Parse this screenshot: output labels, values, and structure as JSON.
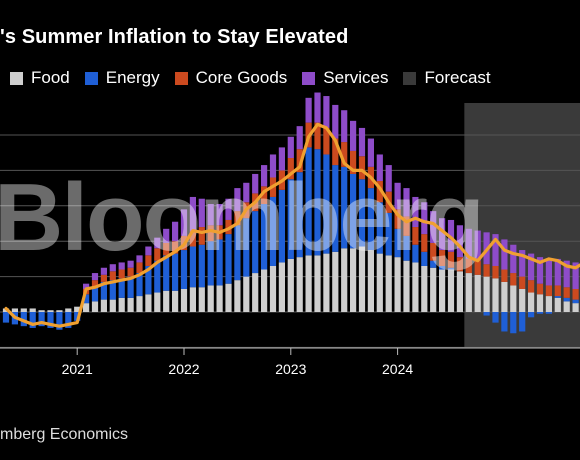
{
  "header": {
    "title": "'s Summer Inflation to Stay Elevated"
  },
  "legend": [
    {
      "label": "Food",
      "color": "#cfcfcf"
    },
    {
      "label": "Energy",
      "color": "#1f5fd6"
    },
    {
      "label": "Core Goods",
      "color": "#cc4a1f"
    },
    {
      "label": "Services",
      "color": "#8e4cc9"
    },
    {
      "label": "Forecast",
      "color": "#3a3a3a"
    }
  ],
  "footer": {
    "source": "mberg Economics"
  },
  "watermark": "Bloomberg",
  "chart_data": {
    "type": "bar",
    "stacked": true,
    "title": "'s Summer Inflation to Stay Elevated",
    "legend_position": "top",
    "grid": true,
    "x_tick_labels": [
      "2021",
      "2022",
      "2023",
      "2024"
    ],
    "forecast_start_index": 52,
    "ylim": [
      -2,
      12
    ],
    "gridlines": [
      -2,
      0,
      2,
      4,
      6,
      8,
      10
    ],
    "series": [
      {
        "name": "Food",
        "color": "#cfcfcf",
        "values": [
          0.2,
          0.2,
          0.2,
          0.2,
          0.1,
          0.1,
          0.1,
          0.2,
          0.3,
          0.5,
          0.6,
          0.7,
          0.7,
          0.8,
          0.8,
          0.9,
          1.0,
          1.1,
          1.2,
          1.2,
          1.3,
          1.4,
          1.4,
          1.5,
          1.5,
          1.6,
          1.8,
          2.0,
          2.2,
          2.4,
          2.6,
          2.8,
          3.0,
          3.1,
          3.2,
          3.2,
          3.3,
          3.4,
          3.6,
          3.6,
          3.7,
          3.5,
          3.3,
          3.2,
          3.1,
          2.9,
          2.8,
          2.6,
          2.5,
          2.4,
          2.4,
          2.3,
          2.2,
          2.1,
          2.0,
          1.9,
          1.7,
          1.5,
          1.3,
          1.1,
          1.0,
          0.9,
          0.8,
          0.6,
          0.5,
          0.4
        ]
      },
      {
        "name": "Energy",
        "color": "#1f5fd6",
        "values": [
          -0.6,
          -0.7,
          -0.8,
          -0.9,
          -0.8,
          -0.9,
          -1.0,
          -0.9,
          -0.5,
          0.5,
          0.8,
          1.0,
          1.1,
          1.1,
          1.2,
          1.3,
          1.6,
          1.8,
          2.0,
          2.1,
          2.2,
          2.3,
          2.4,
          2.5,
          2.6,
          2.8,
          3.1,
          3.3,
          3.5,
          3.7,
          3.9,
          4.1,
          4.5,
          4.8,
          6.1,
          6.0,
          5.6,
          4.9,
          4.6,
          4.2,
          3.8,
          3.5,
          2.9,
          2.4,
          1.6,
          1.4,
          1.0,
          0.8,
          0.4,
          0.2,
          0.1,
          0.0,
          0.0,
          0.0,
          -0.2,
          -0.6,
          -1.1,
          -1.2,
          -1.1,
          -0.3,
          -0.1,
          -0.1,
          0.1,
          0.2,
          0.2,
          0.2
        ]
      },
      {
        "name": "Core Goods",
        "color": "#cc4a1f",
        "values": [
          0.0,
          0.0,
          0.0,
          0.0,
          0.0,
          0.0,
          0.0,
          0.0,
          0.0,
          0.3,
          0.4,
          0.4,
          0.5,
          0.5,
          0.5,
          0.6,
          0.6,
          0.7,
          0.7,
          0.7,
          0.8,
          0.9,
          1.0,
          0.9,
          0.8,
          0.8,
          0.8,
          0.9,
          1.0,
          1.0,
          1.1,
          1.1,
          1.2,
          1.3,
          1.4,
          1.5,
          1.5,
          1.5,
          1.4,
          1.3,
          1.3,
          1.2,
          1.2,
          1.2,
          1.1,
          1.1,
          1.0,
          1.0,
          1.0,
          0.9,
          0.9,
          0.8,
          0.8,
          0.8,
          0.7,
          0.7,
          0.7,
          0.7,
          0.7,
          0.7,
          0.6,
          0.6,
          0.6,
          0.6,
          0.6,
          0.6
        ]
      },
      {
        "name": "Services",
        "color": "#8e4cc9",
        "values": [
          0.0,
          0.0,
          0.0,
          0.0,
          0.0,
          0.0,
          0.0,
          0.0,
          0.0,
          0.3,
          0.4,
          0.4,
          0.4,
          0.4,
          0.4,
          0.4,
          0.5,
          0.6,
          0.8,
          1.1,
          1.5,
          1.9,
          1.6,
          1.2,
          1.2,
          1.2,
          1.3,
          1.1,
          1.1,
          1.2,
          1.3,
          1.3,
          1.2,
          1.3,
          1.4,
          1.7,
          1.8,
          1.9,
          1.8,
          1.7,
          1.6,
          1.6,
          1.5,
          1.5,
          1.5,
          1.6,
          1.7,
          1.8,
          1.8,
          1.8,
          1.8,
          1.8,
          1.7,
          1.7,
          1.8,
          1.8,
          1.7,
          1.6,
          1.5,
          1.5,
          1.5,
          1.5,
          1.5,
          1.5,
          1.5,
          1.5
        ]
      }
    ],
    "total_line": {
      "color": "#f0a030",
      "values": [
        0.2,
        -0.3,
        -0.5,
        -0.7,
        -0.6,
        -0.7,
        -0.8,
        -0.7,
        -0.6,
        1.3,
        1.4,
        1.6,
        1.7,
        1.8,
        1.9,
        2.1,
        2.4,
        2.8,
        3.1,
        3.4,
        3.8,
        4.6,
        4.5,
        4.6,
        4.5,
        4.7,
        5.0,
        5.8,
        6.2,
        6.8,
        7.1,
        7.4,
        7.8,
        8.2,
        9.9,
        10.6,
        10.4,
        9.7,
        8.4,
        8.0,
        8.0,
        7.6,
        7.0,
        6.2,
        5.5,
        5.1,
        5.3,
        5.1,
        5.0,
        4.6,
        4.2,
        3.7,
        3.1,
        2.9,
        3.5,
        4.1,
        3.5,
        3.3,
        3.2,
        3.0,
        2.8,
        3.0,
        2.9,
        2.6,
        2.5,
        2.8
      ]
    }
  }
}
